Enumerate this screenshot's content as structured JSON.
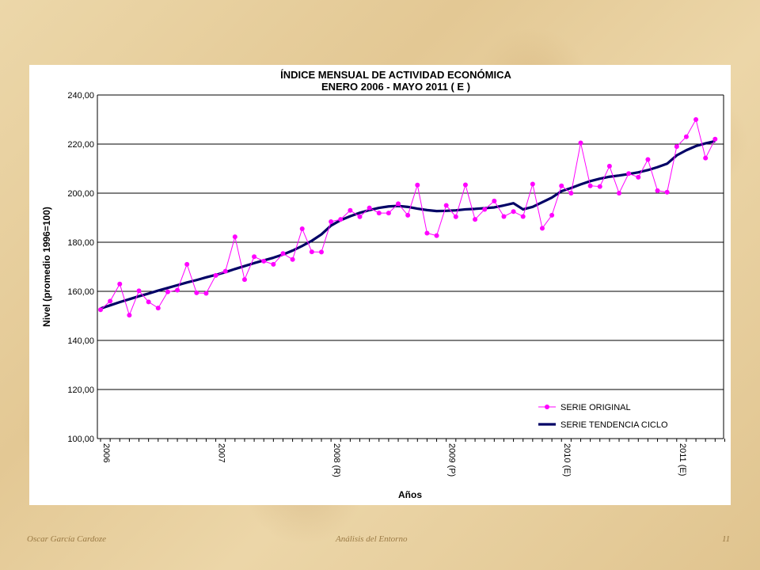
{
  "footer": {
    "author": "Oscar García Cardoze",
    "title": "Análisis del Entorno",
    "page_number": "11"
  },
  "chart_data": {
    "type": "line",
    "title": "ÍNDICE MENSUAL DE ACTIVIDAD ECONÓMICA",
    "subtitle": "ENERO 2006 - MAYO  2011 ( E )",
    "xlabel": "Años",
    "ylabel": "Nivel (promedio 1996=100)",
    "ylim": [
      100,
      240
    ],
    "y_step": 20,
    "y_tick_labels": [
      "100,00",
      "120,00",
      "140,00",
      "160,00",
      "180,00",
      "200,00",
      "220,00",
      "240,00"
    ],
    "x_tick_labels": [
      "2006",
      "2007",
      "2008 (R)",
      "2009 (P)",
      "2010 (E)",
      "2011 (E)"
    ],
    "grid": true,
    "legend_position": "bottom-right",
    "colors": {
      "original": "#ff00ff",
      "trend": "#000066"
    },
    "series": [
      {
        "name": "SERIE ORIGINAL",
        "style": "line-markers",
        "values": [
          152.5,
          156.0,
          163.0,
          150.3,
          160.2,
          155.7,
          153.2,
          159.8,
          160.5,
          171.0,
          159.4,
          159.2,
          166.5,
          168.2,
          182.2,
          164.8,
          174.1,
          172.3,
          171.0,
          175.4,
          173.0,
          185.5,
          176.1,
          176.0,
          188.4,
          189.3,
          193.0,
          190.4,
          194.0,
          191.9,
          191.9,
          195.7,
          191.0,
          203.3,
          183.7,
          182.7,
          195.0,
          190.4,
          203.4,
          189.3,
          193.4,
          196.8,
          190.5,
          192.5,
          190.5,
          203.7,
          185.7,
          191.0,
          203.0,
          200.0,
          220.5,
          203.0,
          202.7,
          211.0,
          200.0,
          208.0,
          206.5,
          213.7,
          201.0,
          200.4,
          219.0,
          223.0,
          230.0,
          214.3,
          222.0
        ]
      },
      {
        "name": "SERIE TENDENCIA CICLO",
        "style": "line",
        "values": [
          153.0,
          154.3,
          155.6,
          156.8,
          158.0,
          159.1,
          160.3,
          161.4,
          162.5,
          163.6,
          164.6,
          165.7,
          166.7,
          167.8,
          169.1,
          170.3,
          171.5,
          172.6,
          173.7,
          175.0,
          176.6,
          178.5,
          180.6,
          183.2,
          186.8,
          189.0,
          190.6,
          192.0,
          193.1,
          194.0,
          194.6,
          194.8,
          194.4,
          193.7,
          193.1,
          192.7,
          192.8,
          193.0,
          193.4,
          193.6,
          193.9,
          194.2,
          195.0,
          195.9,
          193.4,
          194.4,
          196.3,
          198.2,
          200.8,
          202.1,
          203.6,
          204.9,
          205.9,
          206.7,
          207.2,
          207.8,
          208.5,
          209.4,
          210.6,
          212.0,
          215.4,
          217.5,
          219.2,
          220.3,
          221.2
        ]
      }
    ]
  }
}
